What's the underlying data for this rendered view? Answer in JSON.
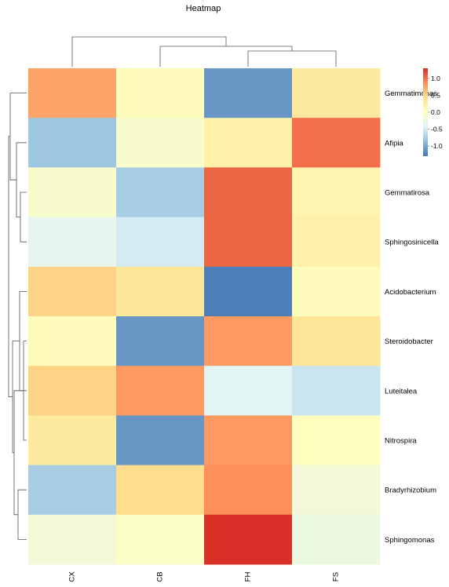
{
  "chart_data": {
    "type": "heatmap",
    "title": "Heatmap",
    "columns": [
      "CX",
      "CB",
      "FH",
      "FS"
    ],
    "rows": [
      "Gemmatimonas",
      "Afipia",
      "Gemmatirosa",
      "Sphingosinicella",
      "Acidobacterium",
      "Steroidobacter",
      "Luteitalea",
      "Nitrospira",
      "Bradyrhizobium",
      "Sphingomonas"
    ],
    "values": [
      [
        0.75,
        0.05,
        -1.1,
        0.3
      ],
      [
        -0.8,
        -0.1,
        0.2,
        1.0
      ],
      [
        -0.1,
        -0.75,
        1.05,
        0.15
      ],
      [
        -0.35,
        -0.5,
        1.05,
        0.2
      ],
      [
        0.5,
        0.35,
        -1.25,
        0.05
      ],
      [
        0.05,
        -1.1,
        0.8,
        0.35
      ],
      [
        0.5,
        0.8,
        -0.4,
        -0.55
      ],
      [
        0.3,
        -1.1,
        0.8,
        0.02
      ],
      [
        -0.75,
        0.45,
        0.85,
        -0.2
      ],
      [
        -0.2,
        -0.05,
        1.3,
        -0.25
      ]
    ],
    "color_range": [
      -1.3,
      1.3
    ],
    "colormap": [
      "#4575b4",
      "#91bfdb",
      "#e0f3f8",
      "#ffffbf",
      "#fee090",
      "#fc8d59",
      "#d73027"
    ],
    "legend": {
      "position": "right",
      "ticks": [
        1.0,
        0.5,
        0.0,
        -0.5,
        -1.0
      ],
      "tick_labels": [
        "1.0",
        "0.5",
        "0.0",
        "-0.5",
        "-1.0"
      ]
    },
    "row_dendrogram": true,
    "column_dendrogram": true
  }
}
